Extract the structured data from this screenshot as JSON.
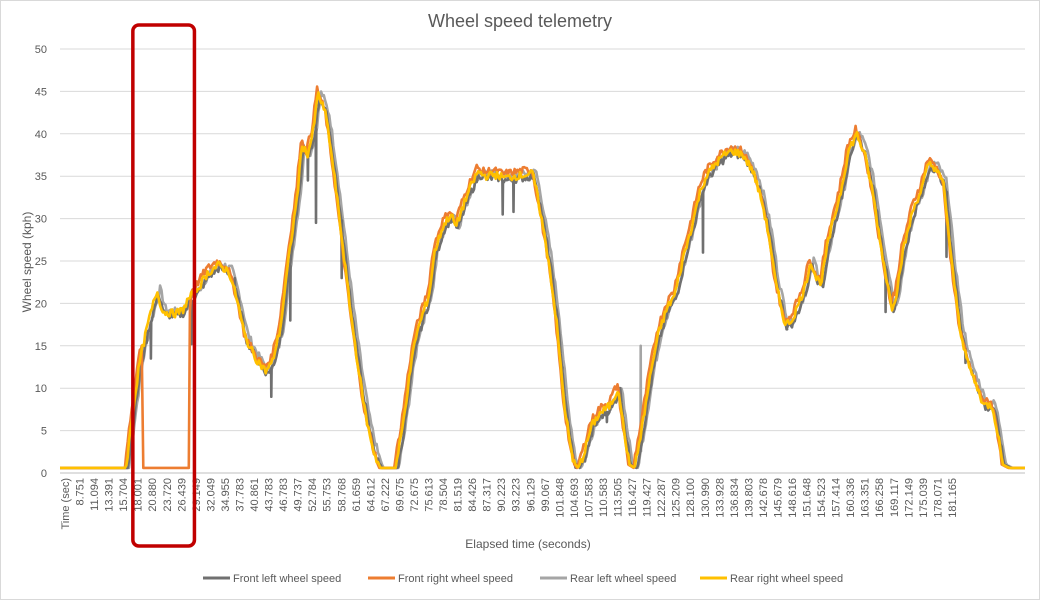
{
  "chart_data": {
    "type": "line",
    "title": "Wheel speed telemetry",
    "xlabel": "Elapsed time (seconds)",
    "ylabel": "Wheel speed (kph)",
    "ylim": [
      0,
      50
    ],
    "yticks": [
      0,
      5,
      10,
      15,
      20,
      25,
      30,
      35,
      40,
      45,
      50
    ],
    "xlim": [
      5.8,
      184.1
    ],
    "grid": true,
    "legend": "bottom",
    "colors": {
      "front_left": "#707070",
      "front_right": "#ED7D31",
      "rear_left": "#A5A5A5",
      "rear_right": "#FFC000",
      "highlight": "#C00000"
    },
    "x_tick_labels": [
      "Time (sec)",
      "8.751",
      "11.094",
      "13.391",
      "15.704",
      "18.001",
      "20.880",
      "23.720",
      "26.439",
      "29.149",
      "32.049",
      "34.955",
      "37.783",
      "40.861",
      "43.783",
      "46.783",
      "49.737",
      "52.784",
      "55.753",
      "58.768",
      "61.659",
      "64.612",
      "67.222",
      "69.675",
      "72.675",
      "75.613",
      "78.504",
      "81.519",
      "84.426",
      "87.317",
      "90.223",
      "93.223",
      "96.129",
      "99.067",
      "101.848",
      "104.693",
      "107.583",
      "110.583",
      "113.505",
      "116.427",
      "119.427",
      "122.287",
      "125.209",
      "128.100",
      "130.990",
      "133.928",
      "136.834",
      "139.803",
      "142.678",
      "145.679",
      "148.616",
      "151.648",
      "154.523",
      "157.414",
      "160.336",
      "163.351",
      "166.258",
      "169.117",
      "172.149",
      "175.039",
      "178.071",
      "181.165"
    ],
    "base_profile": [
      [
        5.8,
        0.6
      ],
      [
        18.0,
        0.6
      ],
      [
        19.0,
        6.0
      ],
      [
        20.5,
        13.0
      ],
      [
        22.0,
        17.5
      ],
      [
        23.7,
        21.5
      ],
      [
        24.8,
        19.0
      ],
      [
        27.0,
        18.8
      ],
      [
        28.5,
        19.2
      ],
      [
        29.5,
        20.5
      ],
      [
        31.0,
        21.5
      ],
      [
        33.0,
        23.5
      ],
      [
        35.0,
        24.5
      ],
      [
        37.0,
        23.8
      ],
      [
        38.5,
        20.5
      ],
      [
        40.0,
        16.0
      ],
      [
        42.0,
        13.5
      ],
      [
        43.8,
        12.0
      ],
      [
        45.0,
        13.0
      ],
      [
        46.5,
        17.0
      ],
      [
        48.0,
        25.0
      ],
      [
        49.7,
        33.0
      ],
      [
        50.5,
        38.8
      ],
      [
        51.5,
        37.5
      ],
      [
        52.5,
        40.0
      ],
      [
        53.5,
        44.8
      ],
      [
        55.0,
        42.0
      ],
      [
        56.5,
        35.0
      ],
      [
        58.0,
        27.0
      ],
      [
        59.5,
        19.0
      ],
      [
        61.0,
        12.0
      ],
      [
        62.5,
        6.0
      ],
      [
        64.0,
        2.0
      ],
      [
        65.0,
        0.6
      ],
      [
        67.8,
        0.6
      ],
      [
        69.0,
        5.0
      ],
      [
        70.5,
        12.0
      ],
      [
        71.5,
        16.0
      ],
      [
        72.7,
        18.5
      ],
      [
        74.0,
        21.0
      ],
      [
        75.0,
        26.0
      ],
      [
        76.5,
        29.0
      ],
      [
        78.0,
        30.5
      ],
      [
        79.0,
        29.0
      ],
      [
        80.0,
        31.0
      ],
      [
        81.5,
        33.5
      ],
      [
        83.0,
        35.5
      ],
      [
        84.4,
        35.0
      ],
      [
        86.0,
        35.2
      ],
      [
        88.0,
        34.8
      ],
      [
        90.0,
        35.0
      ],
      [
        92.0,
        35.2
      ],
      [
        93.2,
        35.3
      ],
      [
        94.5,
        31.0
      ],
      [
        96.1,
        25.0
      ],
      [
        97.5,
        18.0
      ],
      [
        99.0,
        8.0
      ],
      [
        100.5,
        1.5
      ],
      [
        101.5,
        0.6
      ],
      [
        102.5,
        2.0
      ],
      [
        104.0,
        5.5
      ],
      [
        105.5,
        7.0
      ],
      [
        107.5,
        8.0
      ],
      [
        109.0,
        10.0
      ],
      [
        110.0,
        5.0
      ],
      [
        111.0,
        1.0
      ],
      [
        112.0,
        0.6
      ],
      [
        113.5,
        6.0
      ],
      [
        115.0,
        12.0
      ],
      [
        116.4,
        16.5
      ],
      [
        118.0,
        19.5
      ],
      [
        119.4,
        21.0
      ],
      [
        121.0,
        25.5
      ],
      [
        122.3,
        28.5
      ],
      [
        124.0,
        33.0
      ],
      [
        125.2,
        35.0
      ],
      [
        127.0,
        36.5
      ],
      [
        128.5,
        37.5
      ],
      [
        130.0,
        38.0
      ],
      [
        132.0,
        37.5
      ],
      [
        133.9,
        35.5
      ],
      [
        135.5,
        32.0
      ],
      [
        136.8,
        28.0
      ],
      [
        138.0,
        22.5
      ],
      [
        139.8,
        17.5
      ],
      [
        141.0,
        18.0
      ],
      [
        142.0,
        19.5
      ],
      [
        143.5,
        22.0
      ],
      [
        144.5,
        25.0
      ],
      [
        145.5,
        23.0
      ],
      [
        146.5,
        22.5
      ],
      [
        147.5,
        26.5
      ],
      [
        148.6,
        29.5
      ],
      [
        150.0,
        33.0
      ],
      [
        151.5,
        38.0
      ],
      [
        153.0,
        40.0
      ],
      [
        154.5,
        37.5
      ],
      [
        156.0,
        33.0
      ],
      [
        157.4,
        27.0
      ],
      [
        158.5,
        23.0
      ],
      [
        159.5,
        19.5
      ],
      [
        160.3,
        21.0
      ],
      [
        161.5,
        26.0
      ],
      [
        163.4,
        31.0
      ],
      [
        165.0,
        33.5
      ],
      [
        166.3,
        36.5
      ],
      [
        167.5,
        36.0
      ],
      [
        169.1,
        34.0
      ],
      [
        170.5,
        25.0
      ],
      [
        172.1,
        17.0
      ],
      [
        173.5,
        13.0
      ],
      [
        175.0,
        10.5
      ],
      [
        176.5,
        8.0
      ],
      [
        178.0,
        8.0
      ],
      [
        179.0,
        5.0
      ],
      [
        180.0,
        1.0
      ],
      [
        181.2,
        0.6
      ],
      [
        184.1,
        0.6
      ]
    ],
    "series": [
      {
        "name": "Front left wheel speed",
        "key": "front_left",
        "offset": -0.3,
        "x_shift": -0.3,
        "spikes": [
          [
            22.5,
            13.5
          ],
          [
            30.0,
            15.2
          ],
          [
            38.0,
            23.0
          ],
          [
            44.8,
            9.0
          ],
          [
            48.3,
            18.0
          ],
          [
            51.5,
            34.5
          ],
          [
            53.0,
            29.5
          ],
          [
            57.8,
            23.0
          ],
          [
            87.5,
            30.5
          ],
          [
            89.5,
            30.8
          ],
          [
            98.5,
            12.0
          ],
          [
            106.8,
            6.0
          ],
          [
            124.5,
            26.0
          ],
          [
            140.0,
            17.0
          ],
          [
            158.2,
            19.0
          ],
          [
            169.5,
            25.5
          ],
          [
            173.0,
            13.0
          ]
        ]
      },
      {
        "name": "Front right wheel speed",
        "key": "front_right",
        "offset": 0.5,
        "x_shift": 0.2,
        "spikes": [],
        "override": [
          [
            20.9,
            15.0
          ],
          [
            21.2,
            0.6
          ],
          [
            29.6,
            0.6
          ],
          [
            29.8,
            19.0
          ]
        ]
      },
      {
        "name": "Rear left wheel speed",
        "key": "rear_left",
        "offset": 0.2,
        "x_shift": -0.6,
        "spikes": [
          [
            113.0,
            15.0
          ],
          [
            127.0,
            37.0
          ]
        ]
      },
      {
        "name": "Rear right wheel speed",
        "key": "rear_right",
        "offset": 0.0,
        "x_shift": 0.0,
        "spikes": []
      }
    ],
    "highlight_box": {
      "x_from": 20.0,
      "x_to": 29.9
    }
  }
}
